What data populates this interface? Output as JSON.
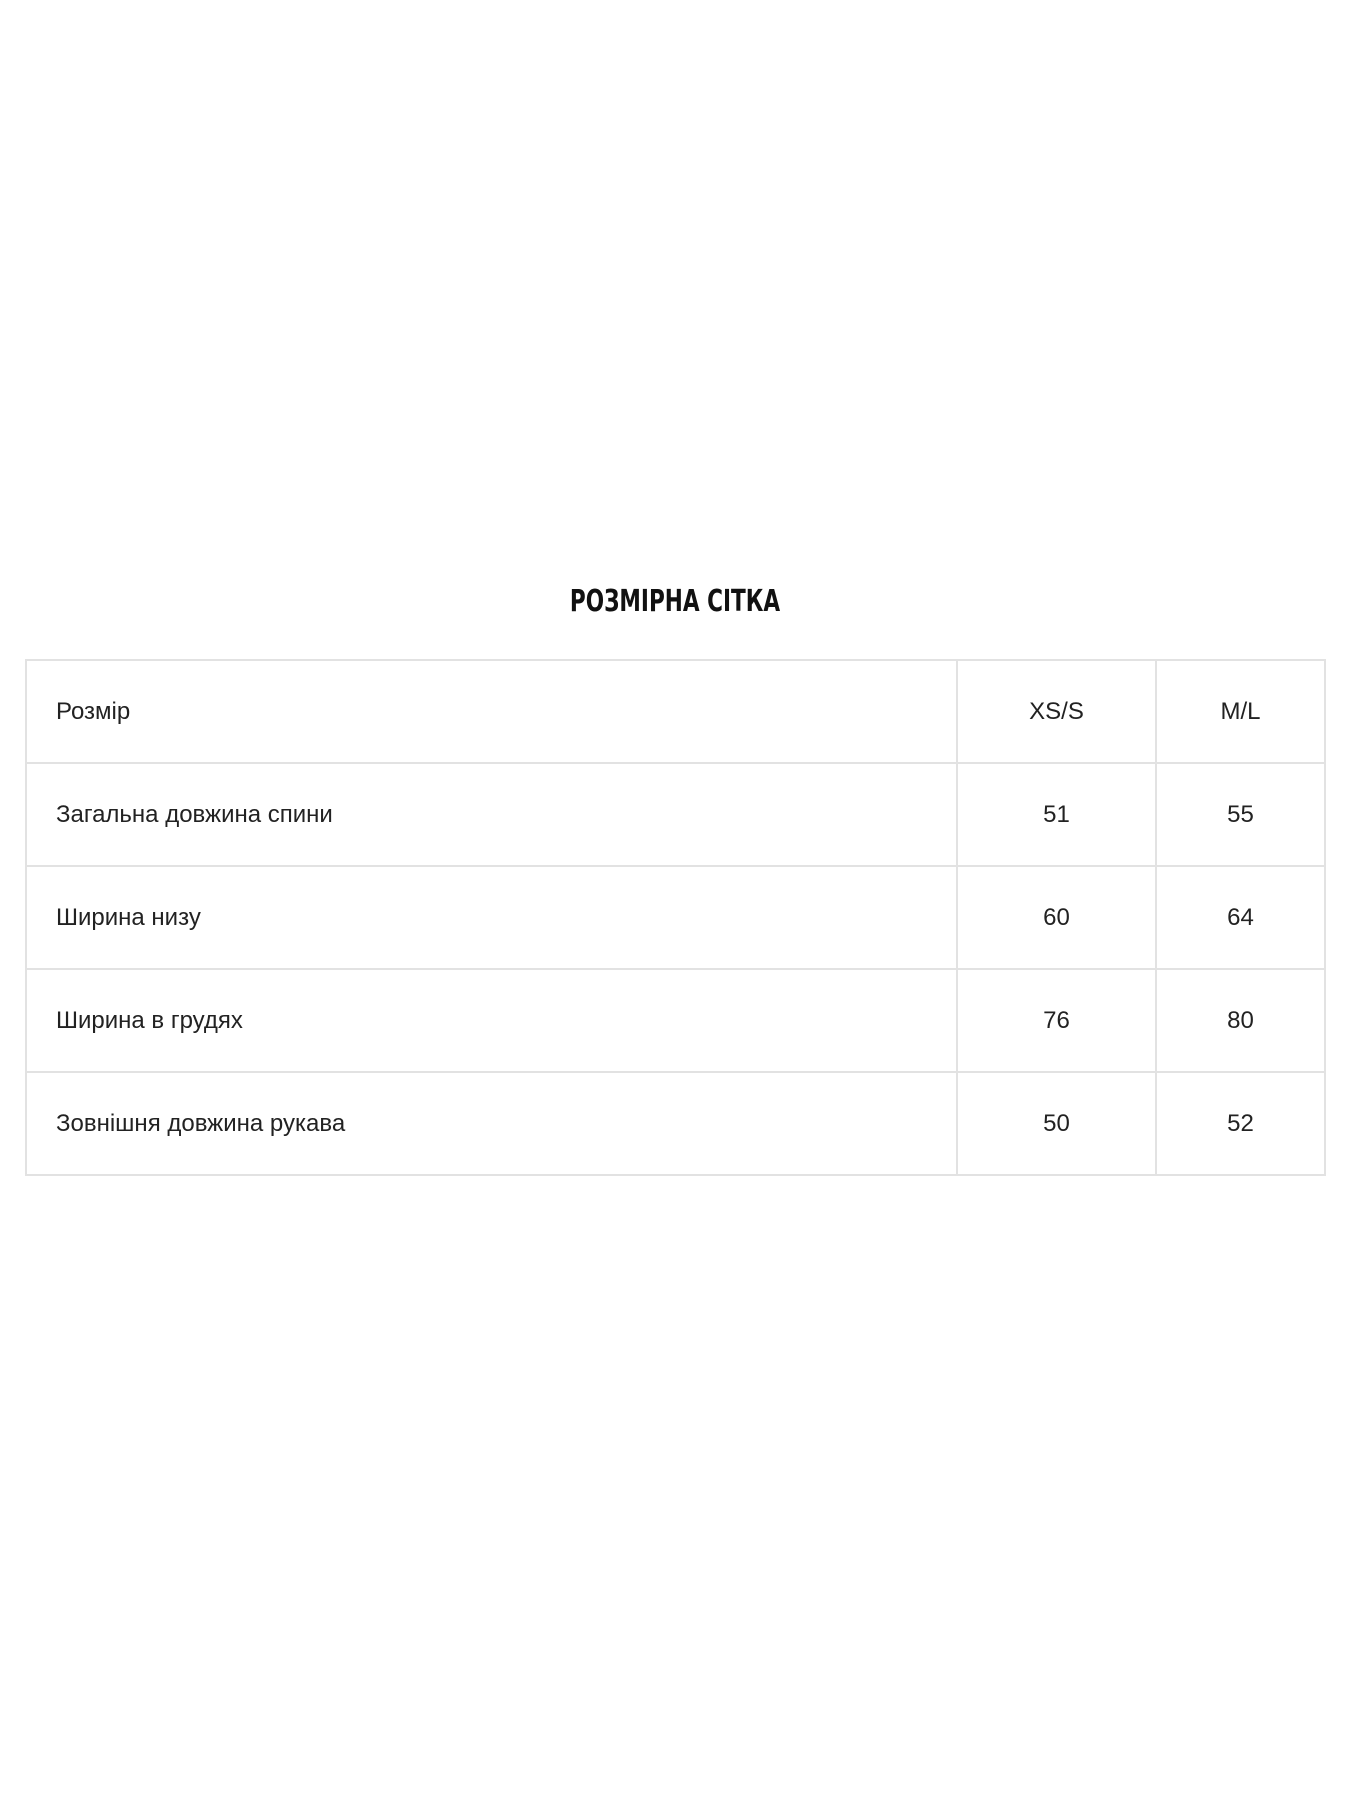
{
  "title": "РОЗМІРНА СІТКА",
  "table": {
    "header": {
      "label": "Розмір",
      "sizes": [
        "XS/S",
        "M/L"
      ]
    },
    "rows": [
      {
        "label": "Загальна довжина спини",
        "values": [
          "51",
          "55"
        ]
      },
      {
        "label": "Ширина низу",
        "values": [
          "60",
          "64"
        ]
      },
      {
        "label": "Ширина в грудях",
        "values": [
          "76",
          "80"
        ]
      },
      {
        "label": "Зовнішня довжина рукава",
        "values": [
          "50",
          "52"
        ]
      }
    ]
  }
}
